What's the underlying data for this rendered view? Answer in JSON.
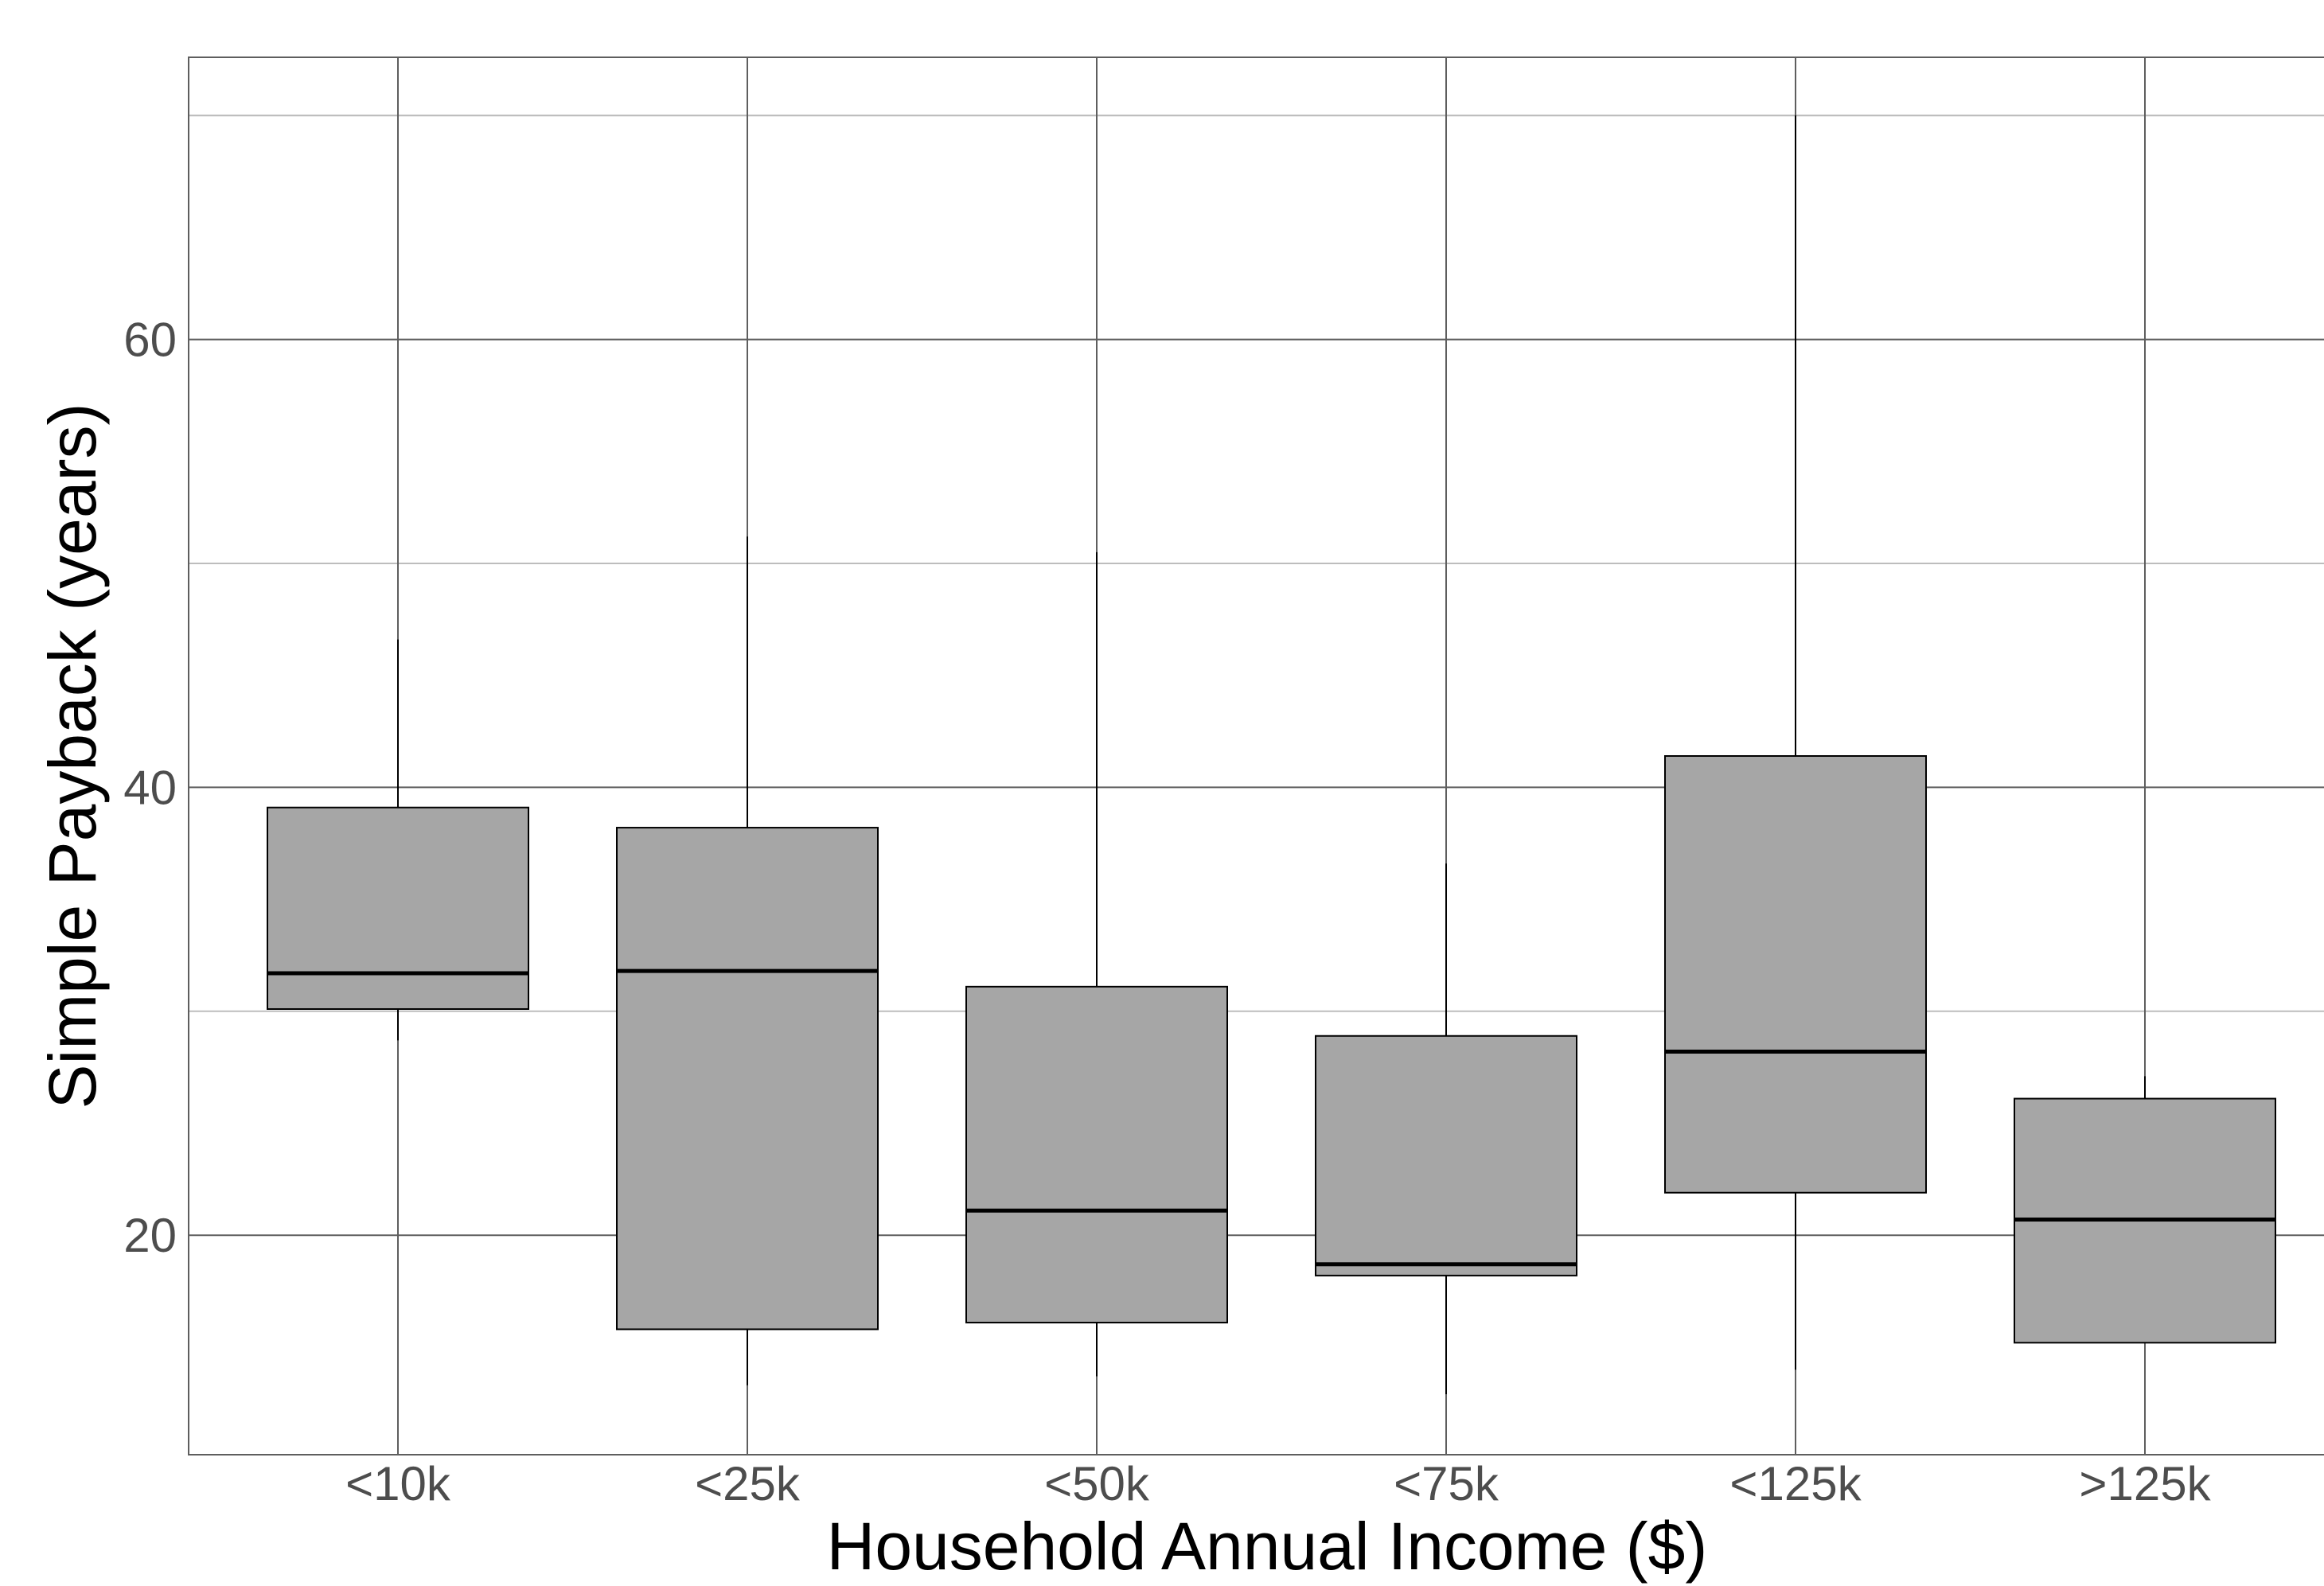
{
  "chart_data": {
    "type": "boxplot",
    "title": "",
    "xlabel": "Household Annual Income ($)",
    "ylabel": "Simple Payback (years)",
    "ylim": [
      10.2,
      72.6
    ],
    "yticks": [
      20,
      40,
      60
    ],
    "grid": true,
    "box_color": "#a6a6a6",
    "categories": [
      "<10k",
      "<25k",
      "<50k",
      "<75k",
      "<125k",
      ">125k"
    ],
    "boxes": [
      {
        "category": "<10k",
        "whisker_low": 28.7,
        "q1": 30.1,
        "median": 31.7,
        "q3": 39.1,
        "whisker_high": 46.6
      },
      {
        "category": "<25k",
        "whisker_low": 13.3,
        "q1": 15.8,
        "median": 31.8,
        "q3": 38.2,
        "whisker_high": 51.2
      },
      {
        "category": "<50k",
        "whisker_low": 13.7,
        "q1": 16.1,
        "median": 21.1,
        "q3": 31.1,
        "whisker_high": 50.5
      },
      {
        "category": "<75k",
        "whisker_low": 12.9,
        "q1": 18.2,
        "median": 18.7,
        "q3": 28.9,
        "whisker_high": 36.6
      },
      {
        "category": "<125k",
        "whisker_low": 14.0,
        "q1": 21.9,
        "median": 28.2,
        "q3": 41.4,
        "whisker_high": 70.0
      },
      {
        "category": ">125k",
        "whisker_low": 15.2,
        "q1": 15.2,
        "median": 20.7,
        "q3": 26.1,
        "whisker_high": 27.1
      }
    ]
  }
}
